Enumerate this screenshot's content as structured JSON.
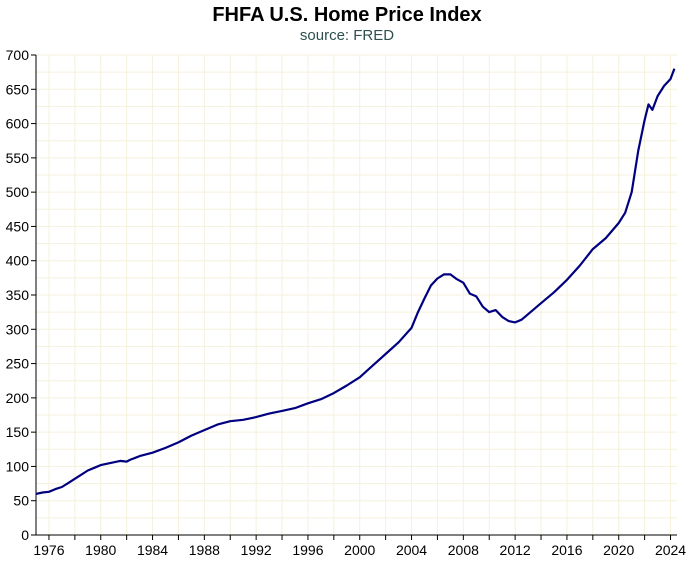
{
  "chart_data": {
    "type": "line",
    "title": "FHFA U.S. Home Price Index",
    "subtitle": "source: FRED",
    "xlabel": "",
    "ylabel": "",
    "xlim": [
      1975.0,
      2024.5
    ],
    "ylim": [
      0,
      700
    ],
    "grid": true,
    "colors": {
      "line": "#000080",
      "grid": "#f5f1dc",
      "axis": "#000000",
      "subtitle": "#2f4f4f"
    },
    "y_ticks": [
      0,
      50,
      100,
      150,
      200,
      250,
      300,
      350,
      400,
      450,
      500,
      550,
      600,
      650,
      700
    ],
    "x_ticks": [
      1976,
      1980,
      1984,
      1988,
      1992,
      1996,
      2000,
      2004,
      2008,
      2012,
      2016,
      2020,
      2024
    ],
    "series": [
      {
        "name": "FHFA U.S. Home Price Index",
        "x": [
          1975.0,
          1975.5,
          1976.0,
          1976.5,
          1977.0,
          1977.5,
          1978.0,
          1978.5,
          1979.0,
          1979.5,
          1980.0,
          1980.5,
          1981.0,
          1981.5,
          1982.0,
          1982.3,
          1982.6,
          1983.0,
          1984.0,
          1985.0,
          1986.0,
          1987.0,
          1988.0,
          1989.0,
          1990.0,
          1991.0,
          1992.0,
          1993.0,
          1994.0,
          1995.0,
          1996.0,
          1997.0,
          1998.0,
          1999.0,
          2000.0,
          2001.0,
          2002.0,
          2003.0,
          2004.0,
          2004.5,
          2005.0,
          2005.5,
          2006.0,
          2006.5,
          2007.0,
          2007.5,
          2008.0,
          2008.5,
          2009.0,
          2009.5,
          2010.0,
          2010.5,
          2011.0,
          2011.5,
          2012.0,
          2012.5,
          2013.0,
          2014.0,
          2015.0,
          2016.0,
          2017.0,
          2018.0,
          2019.0,
          2020.0,
          2020.5,
          2021.0,
          2021.5,
          2022.0,
          2022.3,
          2022.6,
          2023.0,
          2023.5,
          2024.0,
          2024.3
        ],
        "values": [
          60,
          62,
          63,
          67,
          70,
          76,
          82,
          88,
          94,
          98,
          102,
          104,
          106,
          108,
          107,
          110,
          112,
          115,
          120,
          127,
          135,
          145,
          153,
          161,
          166,
          168,
          172,
          177,
          181,
          185,
          192,
          198,
          207,
          218,
          230,
          247,
          264,
          281,
          302,
          325,
          345,
          364,
          374,
          380,
          380,
          373,
          368,
          352,
          348,
          333,
          325,
          328,
          318,
          312,
          310,
          314,
          322,
          338,
          354,
          372,
          393,
          417,
          433,
          455,
          470,
          500,
          560,
          605,
          628,
          620,
          640,
          655,
          665,
          680
        ]
      }
    ]
  }
}
